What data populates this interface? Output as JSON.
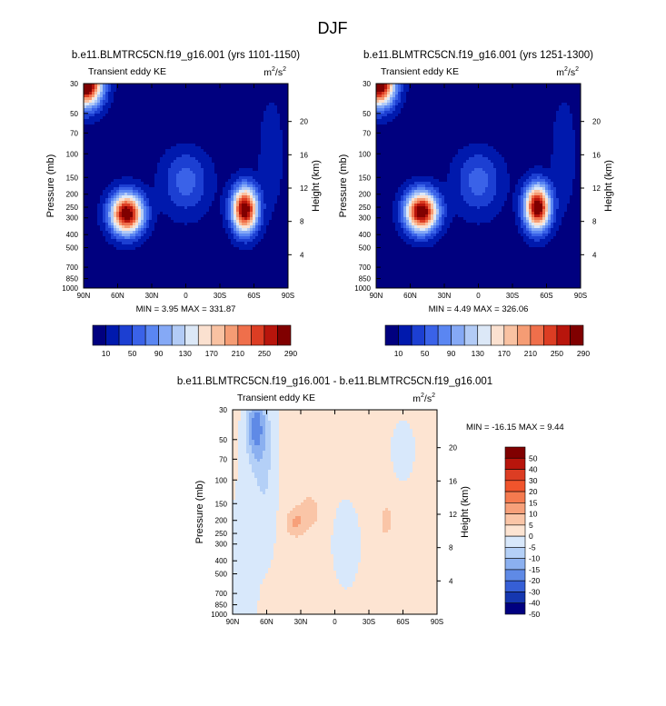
{
  "figure_title": "DJF",
  "chart_data": [
    {
      "type": "heatmap",
      "title": "b.e11.BLMTRC5CN.f19_g16.001 (yrs 1101-1150)",
      "subtitle_left": "Transient eddy KE",
      "units_base": "m",
      "units_exp1": "2",
      "units_sep": "/s",
      "units_exp2": "2",
      "ylabel": "Pressure (mb)",
      "ylabel_right": "Height (km)",
      "x_ticks": [
        "90N",
        "60N",
        "30N",
        "0",
        "30S",
        "60S",
        "90S"
      ],
      "y_ticks": [
        "30",
        "50",
        "70",
        "100",
        "150",
        "200",
        "250",
        "300",
        "400",
        "500",
        "700",
        "850",
        "1000"
      ],
      "height_ticks": [
        "20",
        "16",
        "12",
        "8",
        "4"
      ],
      "min_max_text": "MIN =   3.95  MAX = 331.87",
      "min": 3.95,
      "max": 331.87,
      "colorbar_labels": [
        "10",
        "50",
        "90",
        "130",
        "170",
        "210",
        "250",
        "290"
      ],
      "features": [
        {
          "lat": 52,
          "p": 280,
          "value": 300
        },
        {
          "lat": -52,
          "p": 260,
          "value": 300
        },
        {
          "lat": 88,
          "p": 30,
          "value": 330
        }
      ]
    },
    {
      "type": "heatmap",
      "title": "b.e11.BLMTRC5CN.f19_g16.001 (yrs 1251-1300)",
      "subtitle_left": "Transient eddy KE",
      "units_base": "m",
      "units_exp1": "2",
      "units_sep": "/s",
      "units_exp2": "2",
      "ylabel": "Pressure (mb)",
      "ylabel_right": "Height (km)",
      "x_ticks": [
        "90N",
        "60N",
        "30N",
        "0",
        "30S",
        "60S",
        "90S"
      ],
      "y_ticks": [
        "30",
        "50",
        "70",
        "100",
        "150",
        "200",
        "250",
        "300",
        "400",
        "500",
        "700",
        "850",
        "1000"
      ],
      "height_ticks": [
        "20",
        "16",
        "12",
        "8",
        "4"
      ],
      "min_max_text": "MIN =   4.49  MAX = 326.06",
      "min": 4.49,
      "max": 326.06,
      "colorbar_labels": [
        "10",
        "50",
        "90",
        "130",
        "170",
        "210",
        "250",
        "290"
      ],
      "features": [
        {
          "lat": 50,
          "p": 270,
          "value": 300
        },
        {
          "lat": -52,
          "p": 250,
          "value": 300
        },
        {
          "lat": 88,
          "p": 30,
          "value": 326
        }
      ]
    },
    {
      "type": "heatmap",
      "title": "b.e11.BLMTRC5CN.f19_g16.001 - b.e11.BLMTRC5CN.f19_g16.001",
      "subtitle_left": "Transient eddy KE",
      "units_base": "m",
      "units_exp1": "2",
      "units_sep": "/s",
      "units_exp2": "2",
      "ylabel": "Pressure (mb)",
      "ylabel_right": "Height (km)",
      "x_ticks": [
        "90N",
        "60N",
        "30N",
        "0",
        "30S",
        "60S",
        "90S"
      ],
      "y_ticks": [
        "30",
        "50",
        "70",
        "100",
        "150",
        "200",
        "250",
        "300",
        "400",
        "500",
        "700",
        "850",
        "1000"
      ],
      "height_ticks": [
        "20",
        "16",
        "12",
        "8",
        "4"
      ],
      "min_max_text": "MIN = -16.15  MAX =   9.44",
      "min": -16.15,
      "max": 9.44,
      "colorbar_labels": [
        "50",
        "40",
        "30",
        "20",
        "15",
        "10",
        "5",
        "0",
        "-5",
        "-10",
        "-15",
        "-20",
        "-30",
        "-40",
        "-50"
      ],
      "features": [
        {
          "lat": 70,
          "p": 40,
          "value": -16
        },
        {
          "lat": 35,
          "p": 210,
          "value": 9
        },
        {
          "lat": -45,
          "p": 200,
          "value": 8
        }
      ]
    }
  ],
  "colors": {
    "kinetic_energy_palette": [
      "#00007f",
      "#0019ad",
      "#1c3fd2",
      "#3a62e8",
      "#5a86f2",
      "#85a9f6",
      "#b2cbf6",
      "#dce8f7",
      "#fbe1d0",
      "#f9c2a2",
      "#f59c74",
      "#ef6f4b",
      "#dc3d23",
      "#b8150c",
      "#800000"
    ],
    "difference_palette": [
      "#800000",
      "#b8150c",
      "#dc3d23",
      "#f0542c",
      "#f57a4f",
      "#f7a07a",
      "#fac5a7",
      "#fde4d2",
      "#d8e8fb",
      "#b4d0f7",
      "#8bb0f0",
      "#5f8ae6",
      "#365fd6",
      "#1537b0",
      "#000080"
    ]
  }
}
